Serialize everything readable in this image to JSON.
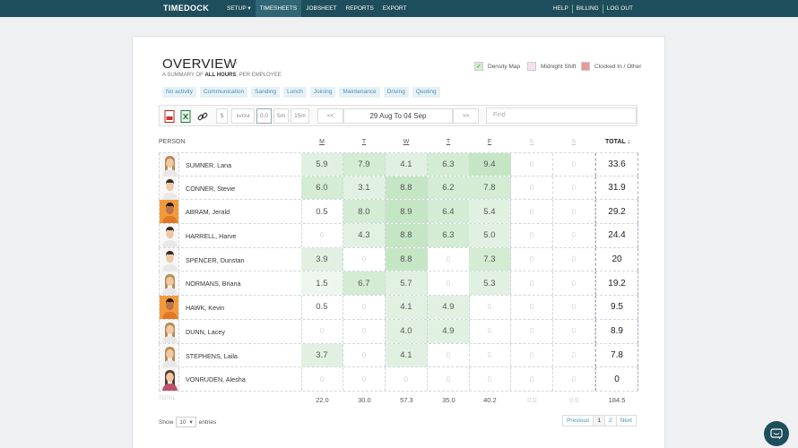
{
  "nav": {
    "brand": "TIMEDOCK",
    "left": [
      "SETUP",
      "TIMESHEETS",
      "JOBSHEET",
      "REPORTS",
      "EXPORT"
    ],
    "active": "TIMESHEETS",
    "right": [
      "HELP",
      "BILLING",
      "LOG OUT"
    ]
  },
  "header": {
    "title": "OVERVIEW",
    "subtitle_pre": "A SUMMARY OF ",
    "subtitle_bold": "ALL HOURS",
    "subtitle_post": ", PER EMPLOYEE"
  },
  "legend": [
    {
      "label": "Density Map",
      "color": "#d3ecd3",
      "check": "✓"
    },
    {
      "label": "Midnight Shift",
      "color": "#f8dff3",
      "check": ""
    },
    {
      "label": "Clocked In / Other",
      "color": "#e79a9a",
      "check": ""
    }
  ],
  "tags": [
    "No activity",
    "Communication",
    "Sanding",
    "Lunch",
    "Joining",
    "Maintenance",
    "Driving",
    "Quoting"
  ],
  "toolbar": {
    "dollar": "$",
    "inout": "In/Out",
    "round0": "0.0",
    "round5": "5m",
    "round15": "15m",
    "prev": "<<",
    "range": "29 Aug To 04 Sep",
    "next": ">>",
    "find_placeholder": "Find"
  },
  "columns": {
    "person": "PERSON",
    "days": [
      "M",
      "T",
      "W",
      "T",
      "F",
      "S",
      "S"
    ],
    "total": "TOTAL"
  },
  "rows": [
    {
      "name": "SUMNER, Lana",
      "g": "f",
      "vals": [
        "5.9",
        "7.9",
        "4.1",
        "6.3",
        "9.4",
        "0",
        "0"
      ],
      "total": "33.6"
    },
    {
      "name": "CONNER, Stevie",
      "g": "m",
      "vals": [
        "6.0",
        "3.1",
        "8.8",
        "6.2",
        "7.8",
        "0",
        "0"
      ],
      "total": "31.9"
    },
    {
      "name": "ABRAM, Jerald",
      "g": "m2",
      "vals": [
        "0.5",
        "8.0",
        "8.9",
        "6.4",
        "5.4",
        "0",
        "0"
      ],
      "total": "29.2"
    },
    {
      "name": "HARRELL, Harve",
      "g": "m",
      "vals": [
        "0",
        "4.3",
        "8.8",
        "6.3",
        "5.0",
        "0",
        "0"
      ],
      "total": "24.4"
    },
    {
      "name": "SPENCER, Dunstan",
      "g": "m",
      "vals": [
        "3.9",
        "0",
        "8.8",
        "0",
        "7.3",
        "0",
        "0"
      ],
      "total": "20"
    },
    {
      "name": "NORMANS, Briana",
      "g": "f",
      "vals": [
        "1.5",
        "6.7",
        "5.7",
        "0",
        "5.3",
        "0",
        "0"
      ],
      "total": "19.2"
    },
    {
      "name": "HAWK, Kevin",
      "g": "m2",
      "vals": [
        "0.5",
        "0",
        "4.1",
        "4.9",
        "0",
        "0",
        "0"
      ],
      "total": "9.5"
    },
    {
      "name": "DUNN, Lacey",
      "g": "f",
      "vals": [
        "0",
        "0",
        "4.0",
        "4.9",
        "0",
        "0",
        "0"
      ],
      "total": "8.9"
    },
    {
      "name": "STEPHENS, Laila",
      "g": "f",
      "vals": [
        "3.7",
        "0",
        "4.1",
        "0",
        "0",
        "0",
        "0"
      ],
      "total": "7.8"
    },
    {
      "name": "VONRUDEN, Alesha",
      "g": "f2",
      "vals": [
        "0",
        "0",
        "0",
        "0",
        "0",
        "0",
        "0"
      ],
      "total": "0"
    }
  ],
  "totals": {
    "label": "TOTAL",
    "vals": [
      "22.0",
      "30.0",
      "57.3",
      "35.0",
      "40.2",
      "0.0",
      "0.0"
    ],
    "total": "184.5"
  },
  "footer": {
    "show": "Show",
    "entries_value": "10",
    "entries": "entries",
    "pages": [
      "Previous",
      "1",
      "2",
      "Next"
    ],
    "current_page": "1"
  }
}
